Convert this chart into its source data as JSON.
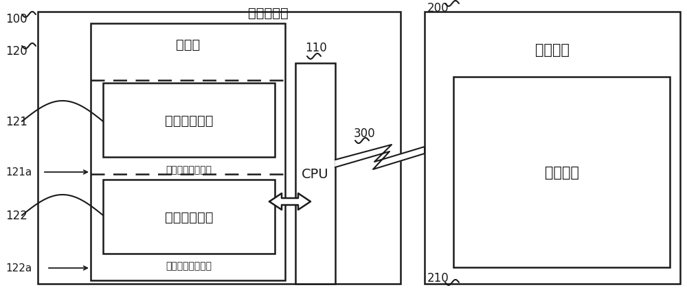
{
  "bg_color": "#ffffff",
  "line_color": "#1a1a1a",
  "embedded_device_label": "嵌入式设备",
  "control_device_label": "控制设备",
  "memory_label": "存储器",
  "cpu_label": "CPU",
  "current_bootloader_label": "当前引导程序",
  "startup_bootloader_label": "启动引导程序",
  "first_region_label": "第一引导程序区域",
  "second_region_label": "第二引导程序区域",
  "control_program_label": "控制程序",
  "label_100": "100",
  "label_110": "110",
  "label_120": "120",
  "label_121": "121",
  "label_121a": "121a",
  "label_122": "122",
  "label_122a": "122a",
  "label_200": "200",
  "label_210": "210",
  "label_300": "300"
}
